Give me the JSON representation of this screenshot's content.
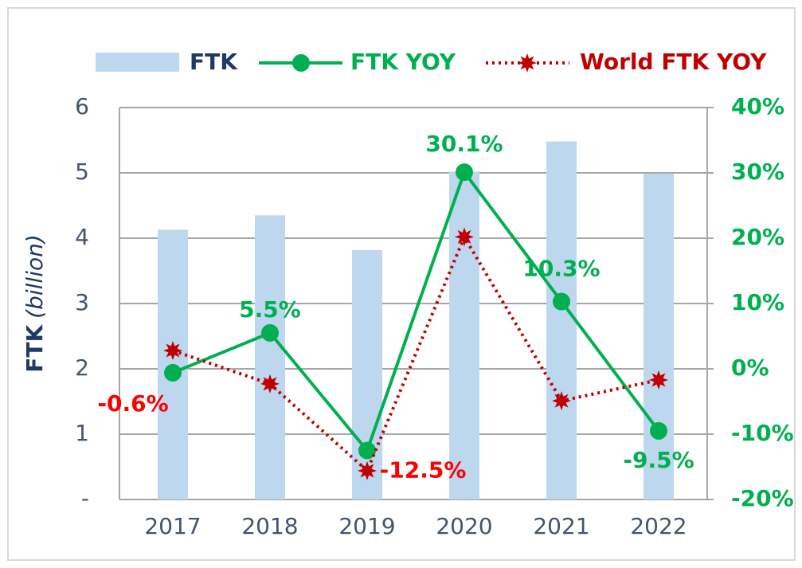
{
  "chart_data": {
    "type": "bar_line",
    "categories": [
      "2017",
      "2018",
      "2019",
      "2020",
      "2021",
      "2022"
    ],
    "ylabel_parts": [
      "FTK",
      "(billion)"
    ],
    "series": [
      {
        "name": "FTK",
        "type": "bar",
        "color": "#bdd7ee",
        "values": [
          4.13,
          4.35,
          3.82,
          5.02,
          5.48,
          4.99
        ]
      },
      {
        "name": "FTK YOY",
        "type": "line",
        "axis": "y2",
        "color": "#00b050",
        "values": [
          -0.6,
          5.5,
          -12.5,
          30.1,
          10.3,
          -9.5
        ],
        "value_labels": [
          "-0.6%",
          "5.5%",
          "-12.5%",
          "30.1%",
          "10.3%",
          "-9.5%"
        ],
        "label_colors": [
          "#ff0000",
          "#00b050",
          "#ff0000",
          "#00b050",
          "#00b050",
          "#00b050"
        ]
      },
      {
        "name": "World FTK YOY",
        "type": "dotted_line",
        "axis": "y2",
        "color": "#c00000",
        "values": [
          2.8,
          -2.3,
          -15.6,
          20.2,
          -4.9,
          -1.7
        ]
      }
    ],
    "ylim": [
      0,
      6
    ],
    "yticks": [
      {
        "value": 0,
        "label": "-"
      },
      1,
      2,
      3,
      4,
      5,
      6
    ],
    "y2lim": [
      -20,
      40
    ],
    "y2ticks": [
      {
        "value": -20,
        "label": "-20%"
      },
      {
        "value": -10,
        "label": "-10%"
      },
      {
        "value": 0,
        "label": "0%"
      },
      {
        "value": 10,
        "label": "10%"
      },
      {
        "value": 20,
        "label": "20%"
      },
      {
        "value": 30,
        "label": "30%"
      },
      {
        "value": 40,
        "label": "40%"
      }
    ],
    "grid": true
  }
}
